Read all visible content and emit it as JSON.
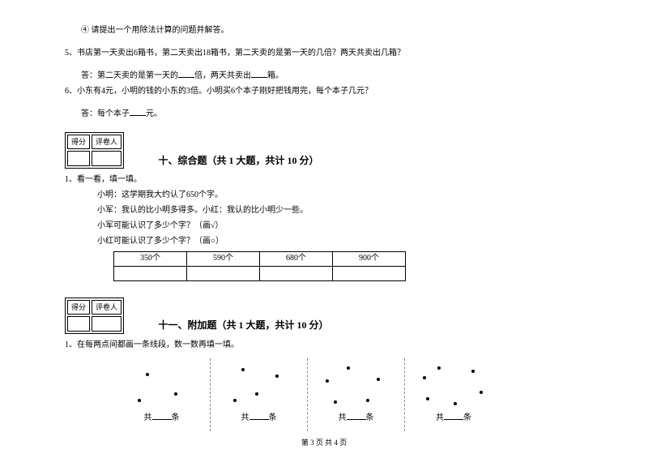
{
  "q4_circled": "④ 请提出一个用除法计算的问题并解答。",
  "q5": "5、书店第一天卖出6箱书，第二天卖出18箱书，第二天卖的是第一天的几倍？两天共卖出几箱？",
  "q5_ans_prefix": "答：第二天卖的是第一天的",
  "q5_ans_mid": "倍，两天共卖出",
  "q5_ans_suffix": "箱。",
  "q6": "6、小东有4元，小明的钱的小东的3倍。小明买6个本子刚好把钱用完，每个本子几元？",
  "q6_ans_prefix": "答：每个本子",
  "q6_ans_suffix": "元。",
  "score_label1": "得分",
  "score_label2": "评卷人",
  "section10_title": "十、综合题（共 1 大题，共计 10 分）",
  "s10_q1": "1、看一看，填一填。",
  "s10_l1": "小明：这学期我大约认了650个字。",
  "s10_l2": "小军：我认的比小明多得多。小红：我认的比小明少一些。",
  "s10_l3": "小军可能认识了多少个字？（画√）",
  "s10_l4": "小红可能认识了多少个字？（画○）",
  "table_cells": [
    "350个",
    "590个",
    "680个",
    "900个"
  ],
  "section11_title": "十一、附加题（共 1 大题，共计 10 分）",
  "s11_q1": "1、在每两点间都画一条线段，数一数再填一填。",
  "panel_label_prefix": "共",
  "panel_label_suffix": "条",
  "panels": [
    {
      "dots": [
        [
          40,
          18
        ],
        [
          75,
          42
        ],
        [
          30,
          50
        ]
      ]
    },
    {
      "dots": [
        [
          38,
          12
        ],
        [
          80,
          20
        ],
        [
          55,
          42
        ],
        [
          28,
          50
        ]
      ]
    },
    {
      "dots": [
        [
          48,
          10
        ],
        [
          85,
          24
        ],
        [
          72,
          50
        ],
        [
          32,
          52
        ],
        [
          22,
          26
        ]
      ]
    },
    {
      "dots": [
        [
          40,
          10
        ],
        [
          82,
          14
        ],
        [
          92,
          40
        ],
        [
          60,
          54
        ],
        [
          26,
          48
        ],
        [
          22,
          22
        ]
      ]
    }
  ],
  "footer": "第 3 页 共 4 页"
}
